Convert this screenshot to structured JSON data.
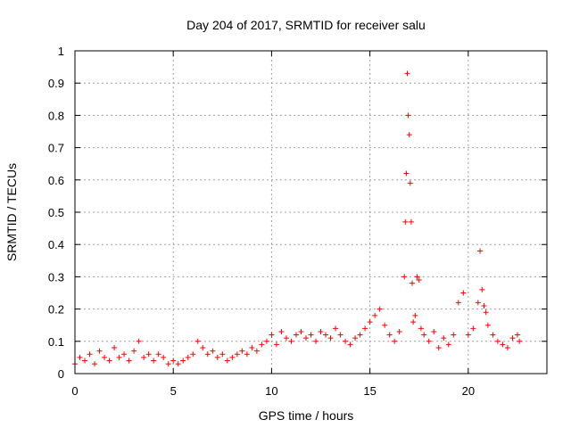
{
  "chart_data": {
    "type": "scatter",
    "title": "Day 204 of 2017, SRMTID for receiver salu",
    "xlabel": "GPS time / hours",
    "ylabel": "SRMTID / TECUs",
    "xlim": [
      0,
      24
    ],
    "ylim": [
      0,
      1
    ],
    "x_ticks": [
      0,
      5,
      10,
      15,
      20
    ],
    "y_ticks": [
      0,
      0.1,
      0.2,
      0.3,
      0.4,
      0.5,
      0.6,
      0.7,
      0.8,
      0.9,
      1
    ],
    "x_tick_labels": [
      "0",
      "5",
      "10",
      "15",
      "20"
    ],
    "y_tick_labels": [
      "0",
      "0.1",
      "0.2",
      "0.3",
      "0.4",
      "0.5",
      "0.6",
      "0.7",
      "0.8",
      "0.9",
      "1"
    ],
    "grid": true,
    "marker": "+",
    "series": [
      {
        "name": "SRMTID",
        "color": "#ff0000",
        "x": [
          0,
          0.25,
          0.5,
          0.75,
          1,
          1.25,
          1.5,
          1.75,
          2,
          2.25,
          2.5,
          2.75,
          3,
          3.25,
          3.5,
          3.75,
          4,
          4.25,
          4.5,
          4.75,
          5,
          5.25,
          5.5,
          5.75,
          6,
          6.25,
          6.5,
          6.75,
          7,
          7.25,
          7.5,
          7.75,
          8,
          8.25,
          8.5,
          8.75,
          9,
          9.25,
          9.5,
          9.75,
          10,
          10.25,
          10.5,
          10.75,
          11,
          11.25,
          11.5,
          11.75,
          12,
          12.25,
          12.5,
          12.75,
          13,
          13.25,
          13.5,
          13.75,
          14,
          14.25,
          14.5,
          14.75,
          15,
          15.25,
          15.5,
          15.75,
          16,
          16.25,
          16.5,
          16.75,
          16.8,
          16.85,
          16.9,
          16.95,
          17,
          17.05,
          17.1,
          17.15,
          17.2,
          17.3,
          17.4,
          17.5,
          17.6,
          17.75,
          18,
          18.25,
          18.5,
          18.75,
          19,
          19.25,
          19.5,
          19.75,
          20,
          20.25,
          20.5,
          20.6,
          20.7,
          20.8,
          20.9,
          21,
          21.25,
          21.5,
          21.75,
          22,
          22.25,
          22.5,
          22.6
        ],
        "y": [
          0.03,
          0.05,
          0.04,
          0.06,
          0.03,
          0.07,
          0.05,
          0.04,
          0.08,
          0.05,
          0.06,
          0.04,
          0.07,
          0.1,
          0.05,
          0.06,
          0.04,
          0.06,
          0.05,
          0.03,
          0.04,
          0.03,
          0.04,
          0.05,
          0.06,
          0.1,
          0.08,
          0.06,
          0.07,
          0.05,
          0.06,
          0.04,
          0.05,
          0.06,
          0.07,
          0.06,
          0.08,
          0.07,
          0.09,
          0.1,
          0.12,
          0.09,
          0.13,
          0.11,
          0.1,
          0.12,
          0.13,
          0.11,
          0.12,
          0.1,
          0.13,
          0.12,
          0.11,
          0.14,
          0.12,
          0.1,
          0.09,
          0.11,
          0.12,
          0.14,
          0.16,
          0.18,
          0.2,
          0.15,
          0.12,
          0.1,
          0.13,
          0.3,
          0.47,
          0.62,
          0.93,
          0.8,
          0.74,
          0.59,
          0.47,
          0.28,
          0.16,
          0.18,
          0.3,
          0.29,
          0.14,
          0.12,
          0.1,
          0.13,
          0.08,
          0.11,
          0.09,
          0.12,
          0.22,
          0.25,
          0.12,
          0.14,
          0.22,
          0.38,
          0.26,
          0.21,
          0.19,
          0.15,
          0.12,
          0.1,
          0.09,
          0.08,
          0.11,
          0.12,
          0.1
        ]
      }
    ]
  }
}
